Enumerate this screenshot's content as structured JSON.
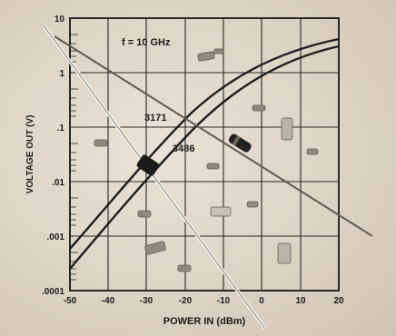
{
  "figure": {
    "annotation": "f = 10 GHz",
    "xlabel": "POWER IN (dBm)",
    "ylabel": "VOLTAGE OUT (V)",
    "x_ticks": [
      "-50",
      "-40",
      "-30",
      "-20",
      "-10",
      "0",
      "10",
      "20"
    ],
    "y_ticks": [
      "10",
      "1",
      ".1",
      ".01",
      ".001",
      ".0001"
    ],
    "curve_labels": [
      "3171",
      "3486"
    ]
  },
  "colors": {
    "background": "#ddd3c5",
    "grid": "#2a2724",
    "curve": "#1f1d1b"
  },
  "objects": [
    "diode-component",
    "crossed-wire-leads",
    "small-package-components"
  ]
}
